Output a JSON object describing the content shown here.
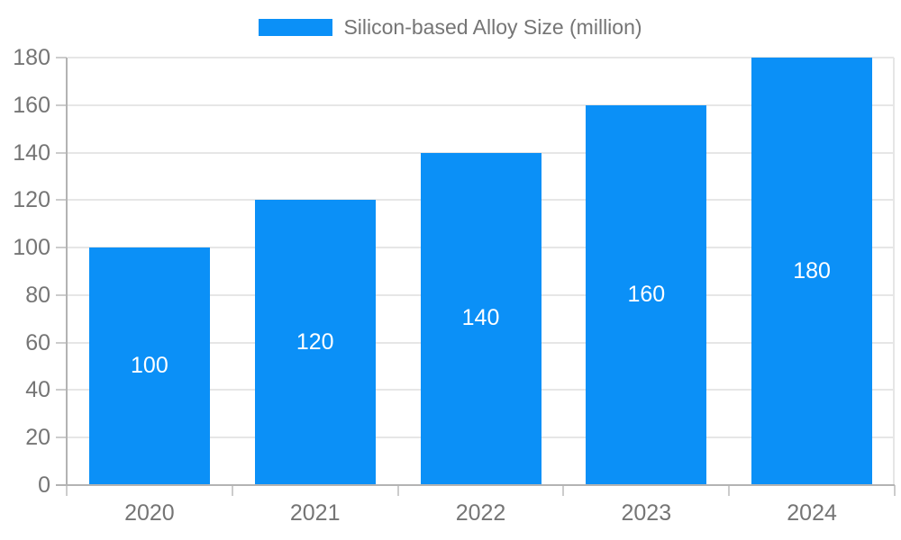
{
  "legend": {
    "label": "Silicon-based Alloy Size (million)"
  },
  "chart_data": {
    "type": "bar",
    "title": "",
    "xlabel": "",
    "ylabel": "",
    "categories": [
      "2020",
      "2021",
      "2022",
      "2023",
      "2024"
    ],
    "series": [
      {
        "name": "Silicon-based Alloy Size (million)",
        "values": [
          100,
          120,
          140,
          160,
          180
        ]
      }
    ],
    "data_labels_shown": true,
    "ylim": [
      0,
      180
    ],
    "ytick_step": 20,
    "yticks": [
      0,
      20,
      40,
      60,
      80,
      100,
      120,
      140,
      160,
      180
    ],
    "grid": true,
    "legend_position": "top",
    "colors": {
      "bar": "#0b90f7",
      "data_label": "#ffffff",
      "axis_text": "#757575",
      "legend_text": "#757575",
      "gridline": "#e6e6e6",
      "axis_line": "#b3b3b3",
      "tick": "#cccccc",
      "background": "#ffffff"
    }
  }
}
